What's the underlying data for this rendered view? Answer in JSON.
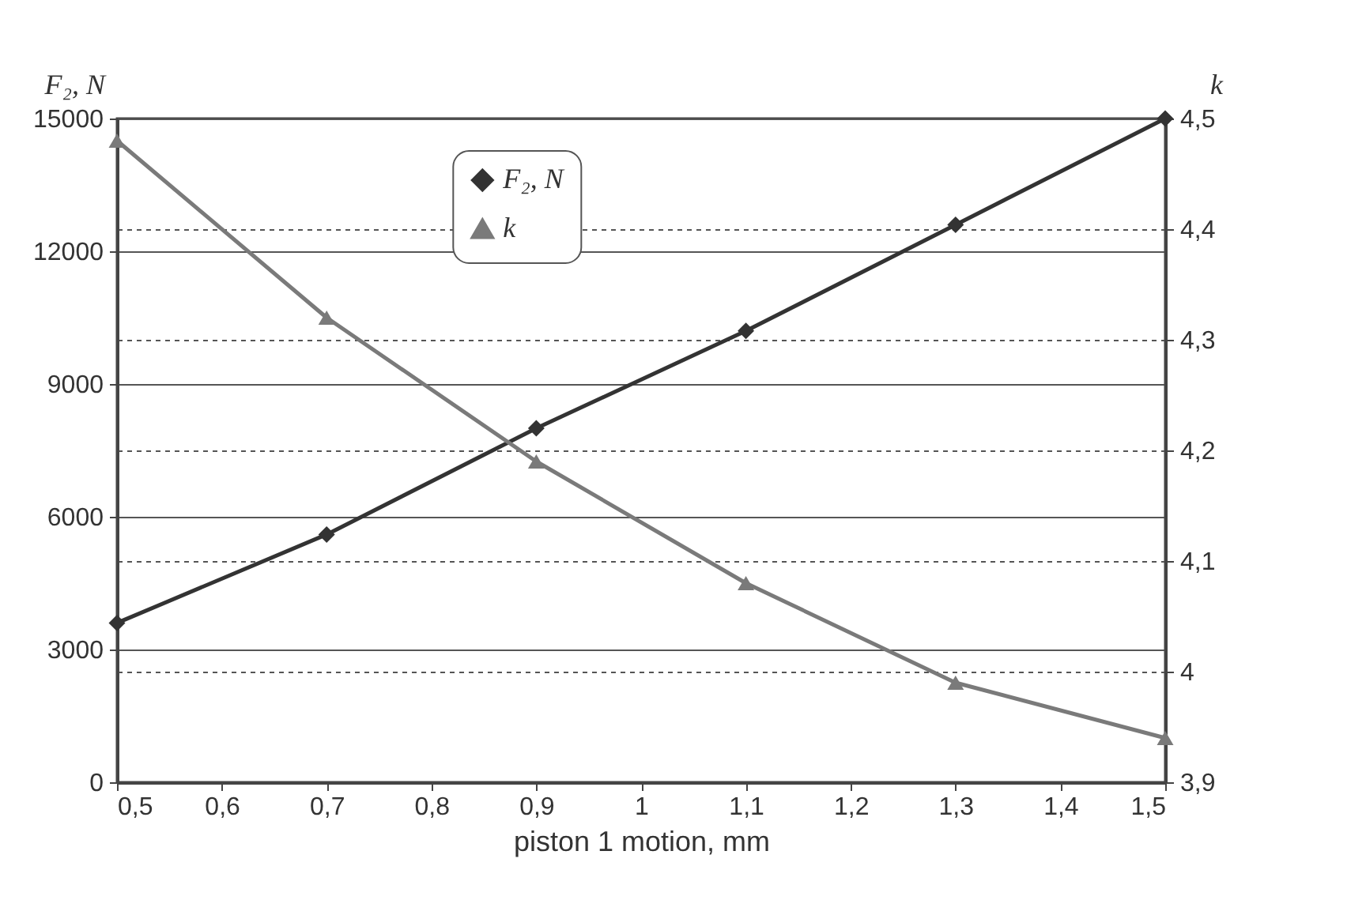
{
  "chart_data": {
    "type": "line",
    "xlabel": "piston 1 motion, mm",
    "ylabel": "F₂, N",
    "y2label": "k",
    "x": [
      0.5,
      0.7,
      0.9,
      1.1,
      1.3,
      1.5
    ],
    "series": [
      {
        "name": "F₂, N",
        "color": "#333333",
        "marker": "diamond",
        "values": [
          3600,
          5600,
          8000,
          10200,
          12600,
          15000
        ]
      },
      {
        "name": "k",
        "color": "#7a7a7a",
        "marker": "triangle",
        "axis": "y2",
        "values": [
          4.48,
          4.32,
          4.19,
          4.08,
          3.99,
          3.94
        ]
      }
    ],
    "xlim": [
      0.5,
      1.5
    ],
    "xticks": [
      {
        "value": 0.5,
        "label": "0,5"
      },
      {
        "value": 0.6,
        "label": "0,6"
      },
      {
        "value": 0.7,
        "label": "0,7"
      },
      {
        "value": 0.8,
        "label": "0,8"
      },
      {
        "value": 0.9,
        "label": "0,9"
      },
      1,
      {
        "value": 1.1,
        "label": "1,1"
      },
      {
        "value": 1.2,
        "label": "1,2"
      },
      {
        "value": 1.3,
        "label": "1,3"
      },
      {
        "value": 1.4,
        "label": "1,4"
      },
      {
        "value": 1.5,
        "label": "1,5"
      }
    ],
    "ylim": [
      0,
      15000
    ],
    "yticks": [
      0,
      3000,
      6000,
      9000,
      12000,
      15000
    ],
    "y2lim": [
      3.9,
      4.5
    ],
    "y2ticks": [
      {
        "value": 3.9,
        "label": "3,9"
      },
      4,
      {
        "value": 4.1,
        "label": "4,1"
      },
      {
        "value": 4.2,
        "label": "4,2"
      },
      {
        "value": 4.3,
        "label": "4,3"
      },
      {
        "value": 4.4,
        "label": "4,4"
      },
      {
        "value": 4.5,
        "label": "4,5"
      }
    ],
    "grid": "y",
    "legend": "top",
    "line_style": "solid"
  }
}
